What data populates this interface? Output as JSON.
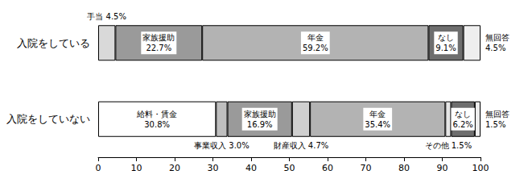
{
  "chart_data": {
    "type": "bar",
    "orientation": "horizontal",
    "stacked": true,
    "data_labels": true,
    "grid": false,
    "categories": [
      "入院をしている",
      "入院をしていない"
    ],
    "xlim": [
      0,
      100
    ],
    "xticks": [
      0,
      10,
      20,
      30,
      40,
      50,
      60,
      70,
      80,
      90,
      100
    ],
    "series": [
      {
        "name": "給料・賃金",
        "color": "#ffffff",
        "values": [
          null,
          30.8
        ],
        "value_labels": [
          null,
          "30.8%"
        ]
      },
      {
        "name": "手当",
        "color": "#d9d9d9",
        "values": [
          4.5,
          null
        ],
        "value_labels": [
          "4.5%",
          null
        ]
      },
      {
        "name": "事業収入",
        "color": "#bfbfbf",
        "values": [
          null,
          3.0
        ],
        "value_labels": [
          null,
          "3.0%"
        ]
      },
      {
        "name": "家族援助",
        "color": "#9a9a9a",
        "values": [
          22.7,
          16.9
        ],
        "value_labels": [
          "22.7%",
          "16.9%"
        ]
      },
      {
        "name": "財産収入",
        "color": "#cfcfcf",
        "values": [
          null,
          4.7
        ],
        "value_labels": [
          null,
          "4.7%"
        ]
      },
      {
        "name": "年金",
        "color": "#b3b3b3",
        "values": [
          59.2,
          35.4
        ],
        "value_labels": [
          "59.2%",
          "35.4%"
        ]
      },
      {
        "name": "その他",
        "color": "#e6e6e6",
        "values": [
          null,
          1.5
        ],
        "value_labels": [
          null,
          "1.5%"
        ]
      },
      {
        "name": "なし",
        "color": "#6e6e6e",
        "values": [
          9.1,
          6.2
        ],
        "value_labels": [
          "9.1%",
          "6.2%"
        ]
      },
      {
        "name": "無回答",
        "color": "#eeeeee",
        "values": [
          4.5,
          1.5
        ],
        "value_labels": [
          "4.5%",
          "1.5%"
        ]
      }
    ]
  }
}
